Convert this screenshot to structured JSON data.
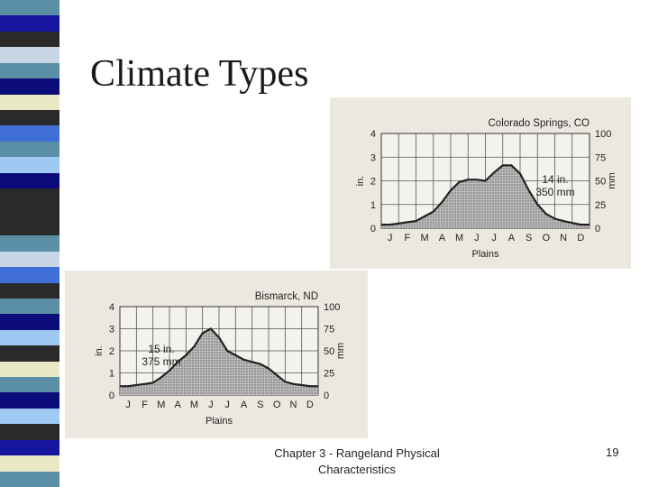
{
  "slide": {
    "title": "Climate Types",
    "footer_line1": "Chapter 3 - Rangeland Physical",
    "footer_line2": "Characteristics",
    "page_number": "19",
    "stripe_colors": [
      "#5b8fa6",
      "#1515a0",
      "#2a2a2a",
      "#c8d6e6",
      "#5b8fa6",
      "#0b0b7a",
      "#e8e8c4",
      "#2a2a2a",
      "#3f6ed6",
      "#5b8fa6",
      "#9fc8f2",
      "#0b0b7a",
      "#2a2a2a",
      "#2a2a2a",
      "#2a2a2a",
      "#5b8fa6",
      "#c8d6e6",
      "#3f6ed6",
      "#2a2a2a",
      "#5b8fa6",
      "#0b0b7a",
      "#9fc8f2",
      "#2a2a2a",
      "#e8e8c4",
      "#5b8fa6",
      "#0b0b7a",
      "#9fc8f2",
      "#2a2a2a",
      "#1515a0",
      "#e8e8c4",
      "#5b8fa6"
    ]
  },
  "chart_data": [
    {
      "type": "area",
      "title": "Colorado Springs, CO",
      "xlabel": "Plains",
      "ylabel_left": "in.",
      "ylabel_right": "mm",
      "categories": [
        "J",
        "F",
        "M",
        "A",
        "M",
        "J",
        "J",
        "A",
        "S",
        "O",
        "N",
        "D"
      ],
      "y_ticks_in": [
        "0",
        "1",
        "2",
        "3",
        "4"
      ],
      "y_ticks_mm": [
        "0",
        "25",
        "50",
        "75",
        "100"
      ],
      "ylim_in": [
        0,
        4
      ],
      "annotation_line1": "14 in.",
      "annotation_line2": "350 mm",
      "x": [
        0.5,
        1.0,
        1.5,
        2.0,
        2.5,
        3.0,
        3.5,
        4.0,
        4.5,
        5.0,
        5.5,
        6.0,
        6.5,
        7.0,
        7.5,
        8.0,
        8.5,
        9.0,
        9.5,
        10.0,
        10.5,
        11.0,
        11.5
      ],
      "values": [
        0.15,
        0.2,
        0.25,
        0.3,
        0.5,
        0.7,
        1.1,
        1.6,
        1.95,
        2.05,
        2.05,
        2.0,
        2.35,
        2.65,
        2.65,
        2.3,
        1.6,
        1.0,
        0.6,
        0.4,
        0.3,
        0.22,
        0.15
      ],
      "grid": true
    },
    {
      "type": "area",
      "title": "Bismarck, ND",
      "xlabel": "Plains",
      "ylabel_left": "in.",
      "ylabel_right": "mm",
      "categories": [
        "J",
        "F",
        "M",
        "A",
        "M",
        "J",
        "J",
        "A",
        "S",
        "O",
        "N",
        "D"
      ],
      "y_ticks_in": [
        "0",
        "1",
        "2",
        "3",
        "4"
      ],
      "y_ticks_mm": [
        "0",
        "25",
        "50",
        "75",
        "100"
      ],
      "ylim_in": [
        0,
        4
      ],
      "annotation_line1": "15 in.",
      "annotation_line2": "375 mm",
      "x": [
        0.5,
        1.0,
        1.5,
        2.0,
        2.5,
        3.0,
        3.5,
        4.0,
        4.5,
        5.0,
        5.5,
        6.0,
        6.5,
        7.0,
        7.5,
        8.0,
        8.5,
        9.0,
        9.5,
        10.0,
        10.5,
        11.0,
        11.5
      ],
      "values": [
        0.4,
        0.45,
        0.5,
        0.55,
        0.8,
        1.1,
        1.5,
        1.8,
        2.2,
        2.8,
        3.0,
        2.6,
        2.0,
        1.8,
        1.6,
        1.5,
        1.4,
        1.2,
        0.9,
        0.6,
        0.5,
        0.45,
        0.4
      ],
      "grid": true
    }
  ]
}
